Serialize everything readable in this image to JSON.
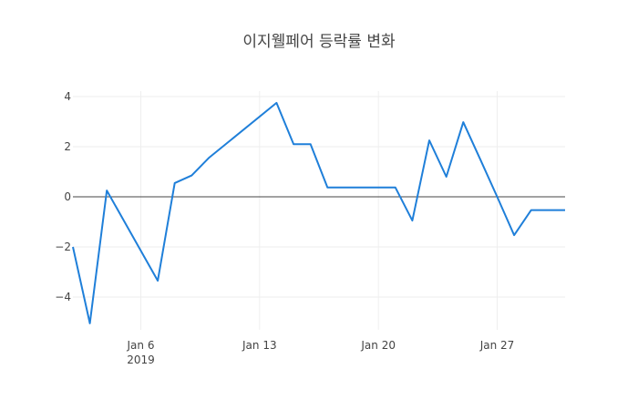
{
  "chart_data": {
    "type": "line",
    "title": "이지웰페어 등락률 변화",
    "xlabel": "",
    "ylabel": "",
    "x": [
      "2019-01-02",
      "2019-01-03",
      "2019-01-04",
      "2019-01-07",
      "2019-01-08",
      "2019-01-09",
      "2019-01-10",
      "2019-01-14",
      "2019-01-15",
      "2019-01-16",
      "2019-01-17",
      "2019-01-18",
      "2019-01-21",
      "2019-01-22",
      "2019-01-23",
      "2019-01-24",
      "2019-01-25",
      "2019-01-26",
      "2019-01-27",
      "2019-01-28",
      "2019-01-29",
      "2019-01-30",
      "2019-01-31"
    ],
    "series": [
      {
        "name": "등락률",
        "color": "#1f7fd9",
        "values": [
          -2.0,
          -5.05,
          0.25,
          -3.35,
          0.55,
          0.85,
          1.55,
          3.75,
          2.1,
          2.1,
          0.37,
          0.37,
          0.37,
          -0.95,
          2.25,
          0.8,
          2.98,
          1.5,
          0.0,
          -1.53,
          -0.53,
          -0.53,
          -0.53
        ]
      }
    ],
    "xticks": [
      {
        "date": "2019-01-06",
        "label": "Jan 6",
        "sublabel": "2019"
      },
      {
        "date": "2019-01-13",
        "label": "Jan 13"
      },
      {
        "date": "2019-01-20",
        "label": "Jan 20"
      },
      {
        "date": "2019-01-27",
        "label": "Jan 27"
      }
    ],
    "yticks": [
      4,
      2,
      0,
      -2,
      -4
    ],
    "ytick_labels": [
      "4",
      "2",
      "0",
      "−2",
      "−4"
    ],
    "xlim": [
      "2019-01-02",
      "2019-01-31"
    ],
    "ylim": [
      -5.3,
      4.2
    ],
    "grid": true,
    "legend": false,
    "zero_line": true
  }
}
